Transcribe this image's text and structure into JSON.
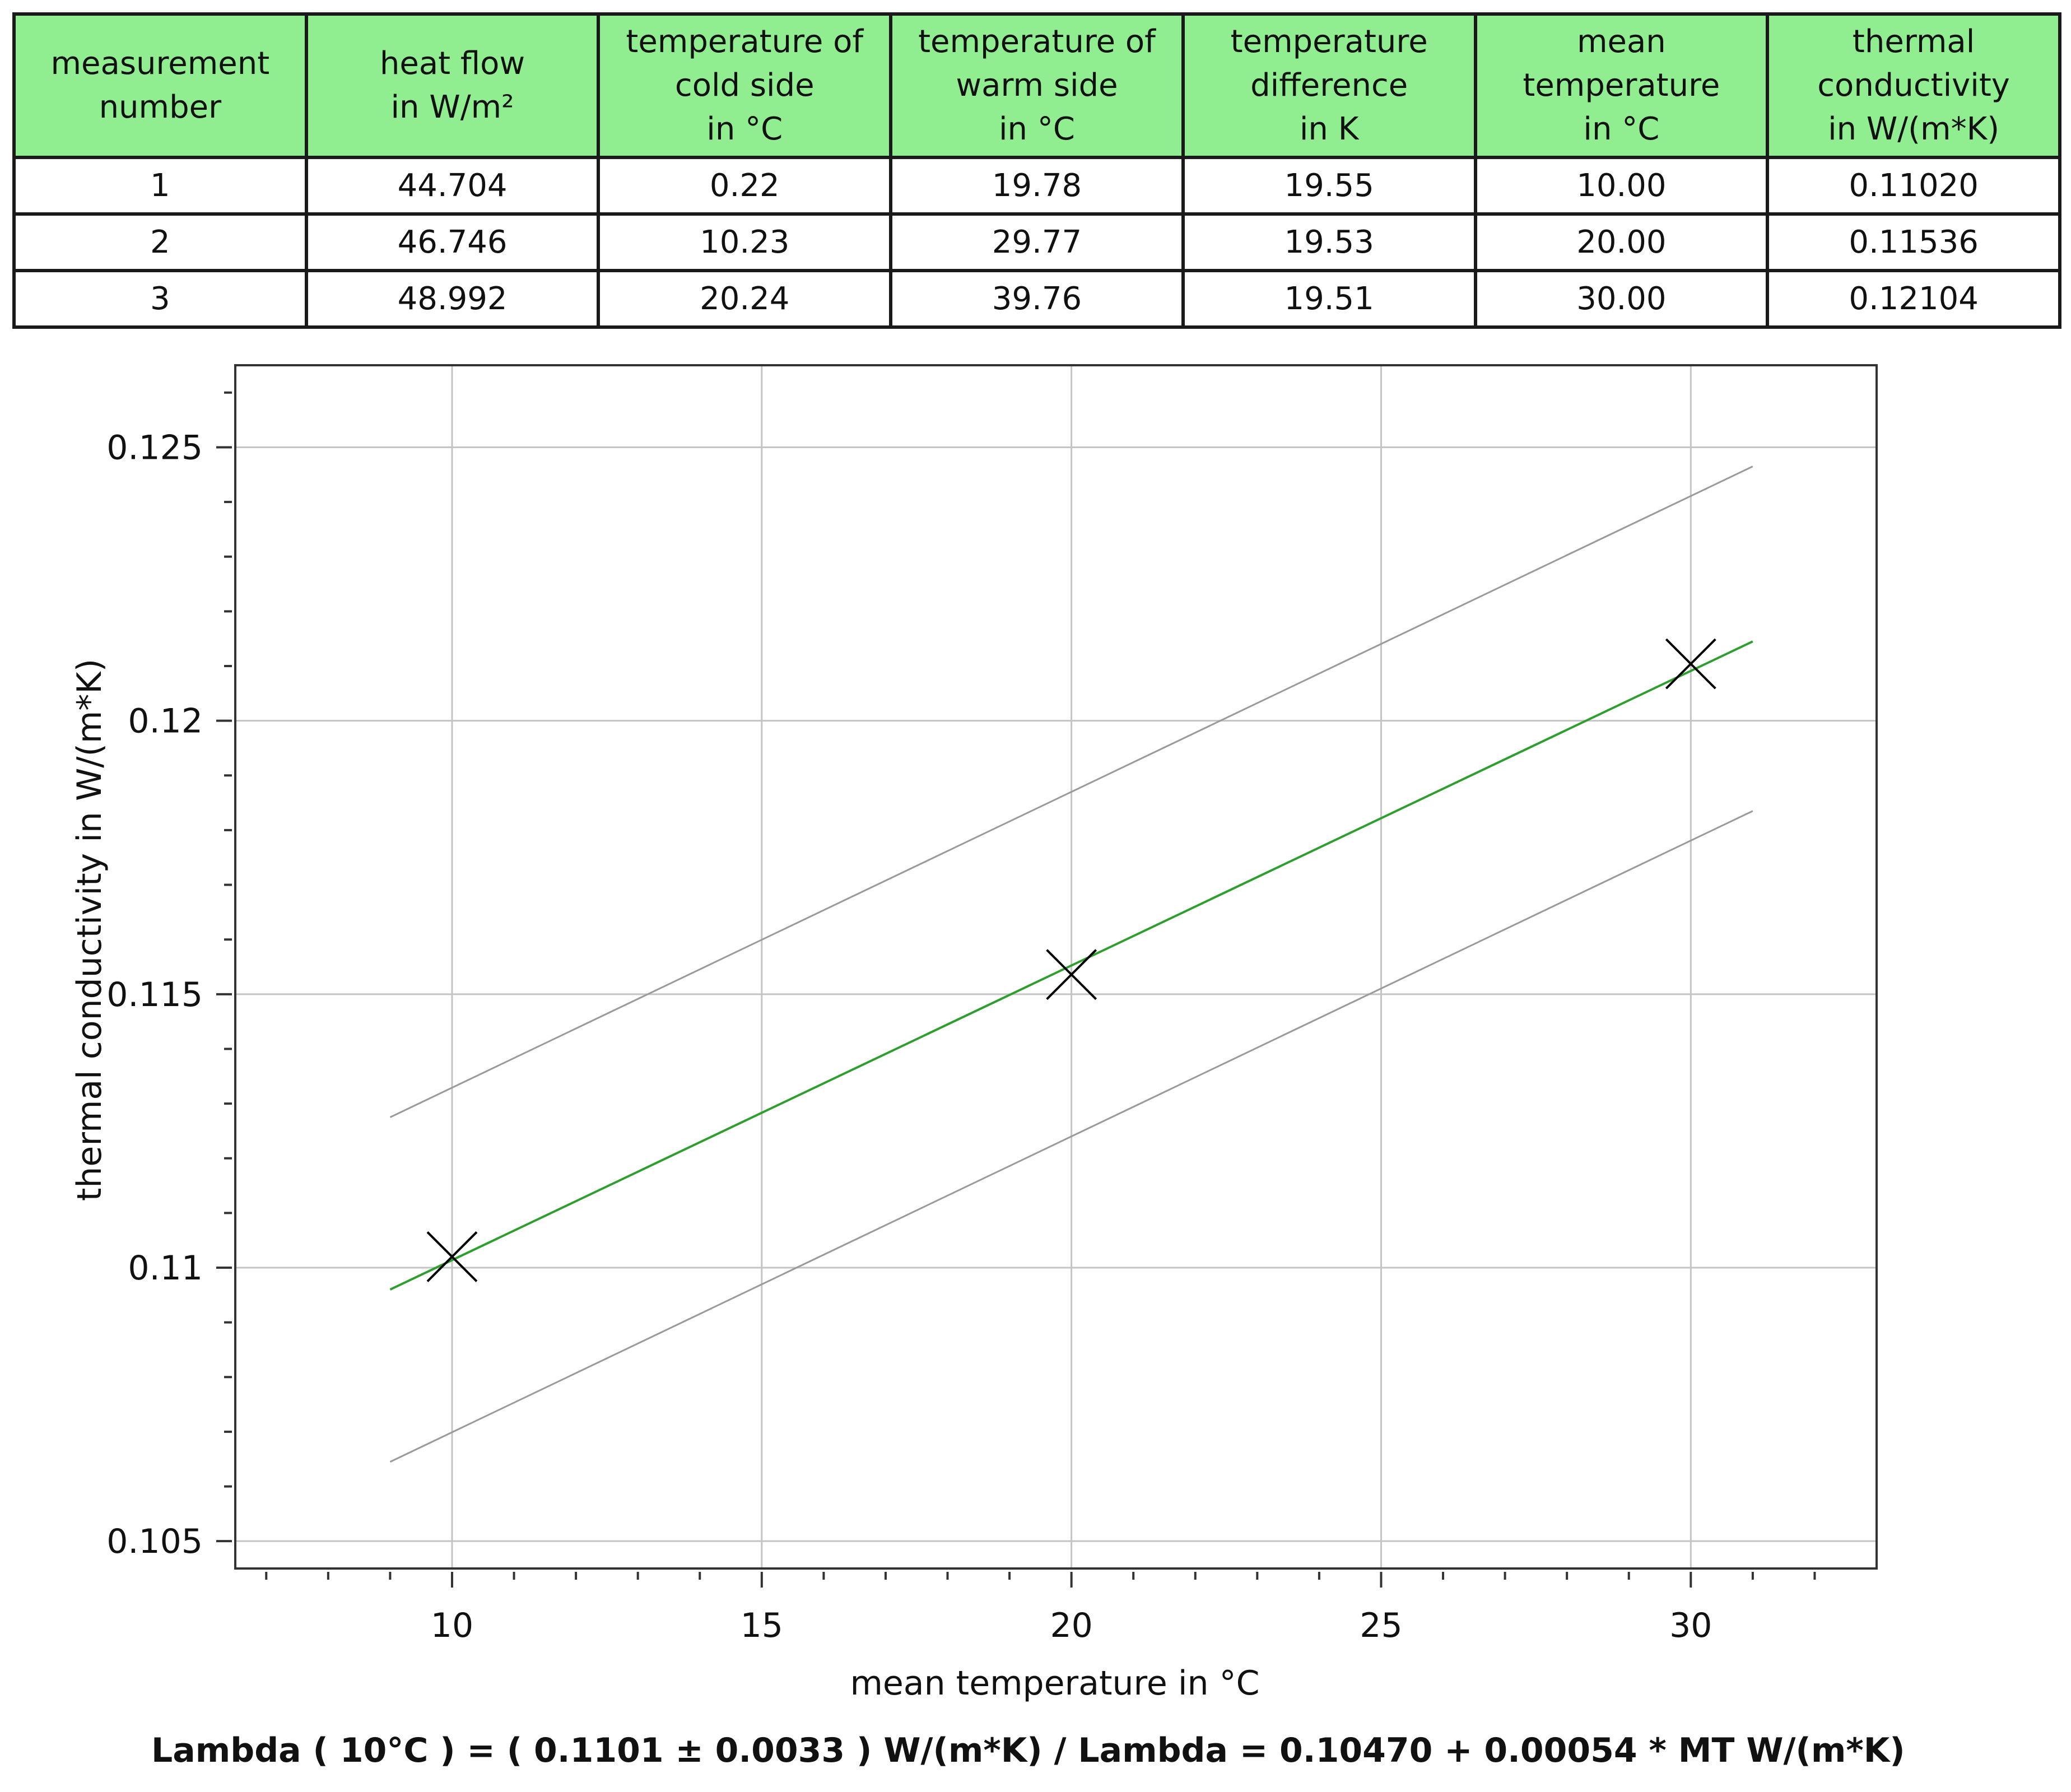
{
  "table": {
    "headers": [
      "measurement\nnumber",
      "heat flow\nin W/m²",
      "temperature of\ncold side\nin °C",
      "temperature of\nwarm side\nin °C",
      "temperature\ndifference\nin K",
      "mean\ntemperature\nin °C",
      "thermal\nconductivity\nin W/(m*K)"
    ],
    "rows": [
      [
        "1",
        "44.704",
        "0.22",
        "19.78",
        "19.55",
        "10.00",
        "0.11020"
      ],
      [
        "2",
        "46.746",
        "10.23",
        "29.77",
        "19.53",
        "20.00",
        "0.11536"
      ],
      [
        "3",
        "48.992",
        "20.24",
        "39.76",
        "19.51",
        "30.00",
        "0.12104"
      ]
    ]
  },
  "chart_data": {
    "type": "scatter",
    "xlabel": "mean temperature in °C",
    "ylabel": "thermal conductivity in W/(m*K)",
    "xlim": [
      6.5,
      33
    ],
    "ylim": [
      0.1045,
      0.1265
    ],
    "xticks": [
      10,
      15,
      20,
      25,
      30
    ],
    "xtick_labels": [
      "10",
      "15",
      "20",
      "25",
      "30"
    ],
    "yticks": [
      0.105,
      0.11,
      0.115,
      0.12,
      0.125
    ],
    "ytick_labels": [
      "0.105",
      "0.11",
      "0.115",
      "0.12",
      "0.125"
    ],
    "grid": true,
    "points": {
      "x": [
        10,
        20,
        30
      ],
      "y": [
        0.1102,
        0.11536,
        0.12104
      ],
      "marker": "x",
      "color": "#000000"
    },
    "fit_line": {
      "x": [
        9,
        31
      ],
      "y": [
        0.1096,
        0.12145
      ],
      "color": "#2e9e2e"
    },
    "upper_band": {
      "x": [
        9,
        31
      ],
      "y": [
        0.11275,
        0.12465
      ],
      "color": "#9a9a9a"
    },
    "lower_band": {
      "x": [
        9,
        31
      ],
      "y": [
        0.10645,
        0.11835
      ],
      "color": "#9a9a9a"
    }
  },
  "footer": {
    "formula": "Lambda ( 10°C ) = ( 0.1101 ± 0.0033 ) W/(m*K) / Lambda = 0.10470 + 0.00054 * MT W/(m*K)"
  }
}
